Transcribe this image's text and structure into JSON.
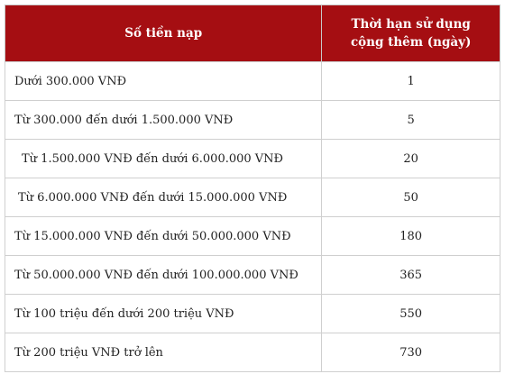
{
  "table": {
    "header": {
      "amount": "Số tiền nạp",
      "duration_line1": "Thời hạn sử dụng",
      "duration_line2": "cộng thêm (ngày)"
    },
    "rows": [
      {
        "amount": "Dưới 300.000 VNĐ",
        "days": "1"
      },
      {
        "amount": "Từ 300.000 đến dưới 1.500.000 VNĐ",
        "days": "5"
      },
      {
        "amount": "Từ 1.500.000 VNĐ đến dưới 6.000.000 VNĐ",
        "days": "20"
      },
      {
        "amount": "Từ 6.000.000 VNĐ đến dưới 15.000.000 VNĐ",
        "days": "50"
      },
      {
        "amount": "Từ 15.000.000 VNĐ đến dưới 50.000.000 VNĐ",
        "days": "180"
      },
      {
        "amount": "Từ 50.000.000 VNĐ đến dưới 100.000.000 VNĐ",
        "days": "365"
      },
      {
        "amount": "Từ 100 triệu đến dưới 200 triệu VNĐ",
        "days": "550"
      },
      {
        "amount": "Từ 200 triệu VNĐ trở lên",
        "days": "730"
      }
    ]
  },
  "colors": {
    "header_bg": "#a50e12",
    "header_text": "#ffffff",
    "border": "#cfcfcf"
  }
}
